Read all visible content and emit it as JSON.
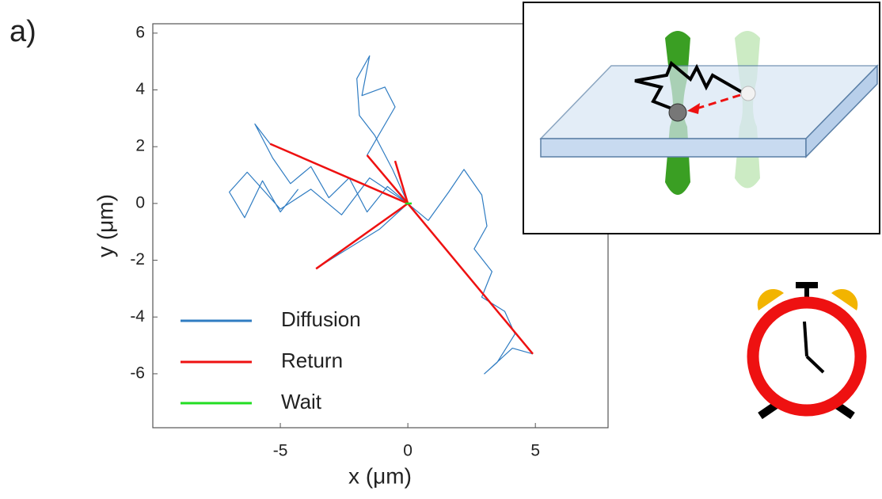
{
  "panel_label": "a)",
  "chart_data": {
    "type": "line",
    "xlabel": "x (μm)",
    "ylabel": "y (μm)",
    "xlim": [
      -10,
      7.85
    ],
    "ylim": [
      -7.9,
      6.33
    ],
    "xticks": [
      -5,
      0,
      5
    ],
    "yticks": [
      6,
      4,
      2,
      0,
      -2,
      -4,
      -6
    ],
    "legend": "lower left",
    "series": [
      {
        "name": "Diffusion",
        "color": "#2f7cc2",
        "x": [
          0,
          -0.8,
          -1.6,
          -2.3,
          -3.1,
          -3.8,
          -4.6,
          -5.3,
          -6.0,
          -5.4,
          null,
          0,
          0.8,
          1.6,
          2.2,
          2.9,
          3.1,
          2.6,
          3.3,
          2.9,
          3.8,
          4.2,
          3.5,
          3.0,
          4.1,
          4.9,
          null,
          0,
          -0.6,
          -1.3,
          -1.9,
          -2.0,
          -1.5,
          -1.8,
          -0.9,
          -0.5,
          -1.6,
          null,
          0,
          -1.1,
          -2.0,
          -2.9,
          -3.6,
          null,
          0,
          -1.5,
          -2.6,
          -3.8,
          -5.0,
          -6.3,
          -7.0,
          -6.4,
          -5.7,
          -5.0,
          -4.3
        ],
        "y": [
          0,
          0.6,
          -0.3,
          0.9,
          0.2,
          1.3,
          0.7,
          1.6,
          2.8,
          2.1,
          null,
          0,
          -0.6,
          0.4,
          1.2,
          0.3,
          -0.8,
          -1.6,
          -2.4,
          -3.3,
          -3.8,
          -4.6,
          -5.6,
          -6.0,
          -5.1,
          -5.3,
          null,
          0,
          1.2,
          2.4,
          3.1,
          4.4,
          5.2,
          3.8,
          4.1,
          3.4,
          1.7,
          null,
          0,
          -0.9,
          -1.4,
          -1.9,
          -2.3,
          null,
          0,
          0.9,
          -0.4,
          0.5,
          -0.2,
          1.1,
          0.4,
          -0.5,
          0.8,
          -0.3,
          0.5
        ]
      },
      {
        "name": "Return",
        "color": "#ee1111",
        "x": [
          -5.4,
          0,
          null,
          4.9,
          0,
          null,
          -1.6,
          0,
          null,
          -3.6,
          0,
          null,
          -0.5,
          0
        ],
        "y": [
          2.1,
          0,
          null,
          -5.3,
          0,
          null,
          1.7,
          0,
          null,
          -2.3,
          0,
          null,
          1.5,
          0
        ]
      },
      {
        "name": "Wait",
        "color": "#22dd22",
        "x": [
          -0.1,
          0.15
        ],
        "y": [
          0,
          0
        ]
      }
    ]
  }
}
